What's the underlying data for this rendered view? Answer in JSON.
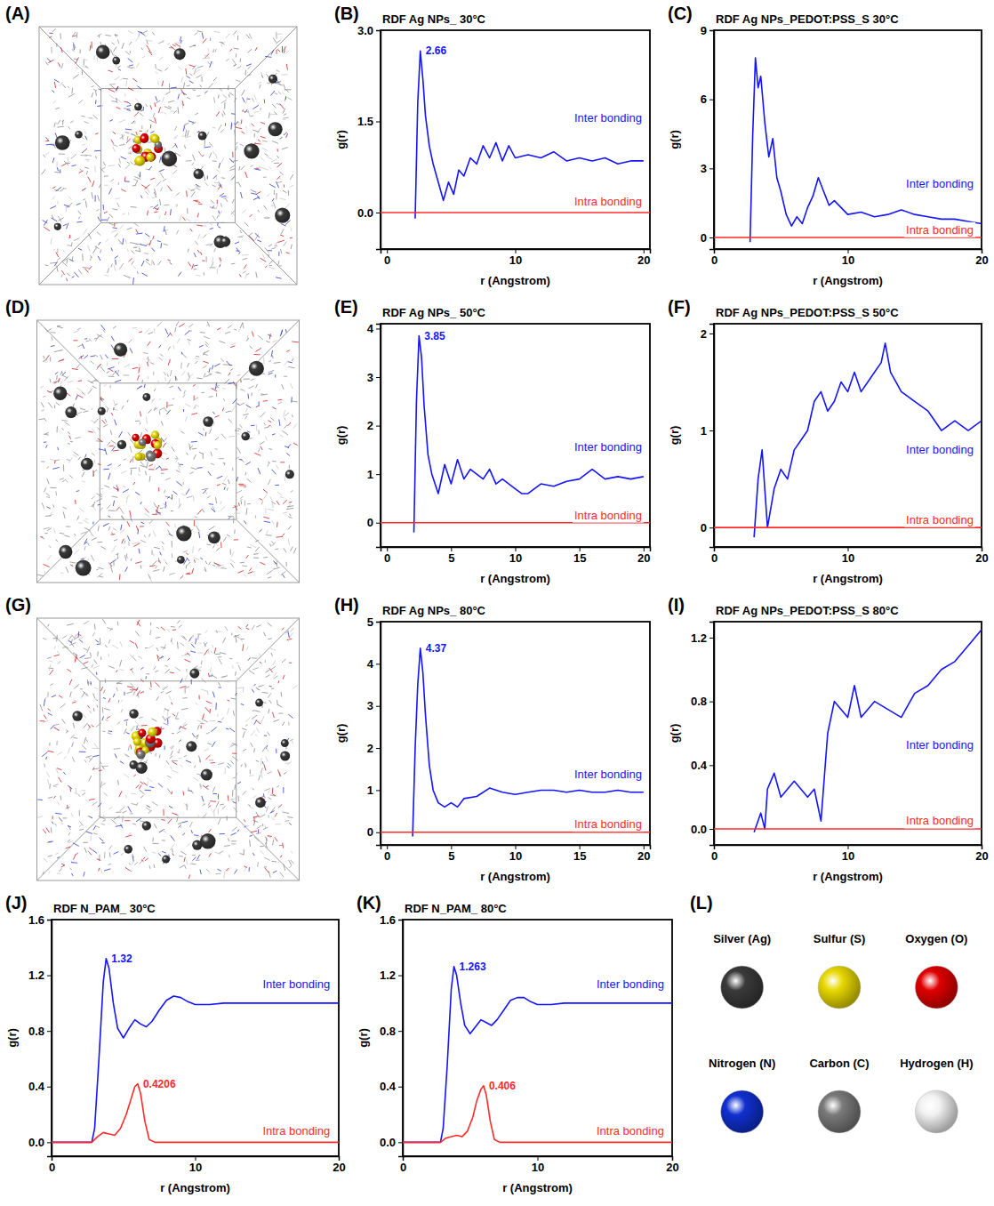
{
  "snapshots": [
    {
      "label": "(A)"
    },
    {
      "label": "(D)"
    },
    {
      "label": "(G)"
    }
  ],
  "atom_key": {
    "label": "(L)",
    "items": [
      {
        "name": "Silver (Ag)",
        "color": "#3a3a3a"
      },
      {
        "name": "Sulfur (S)",
        "color": "#e8d800"
      },
      {
        "name": "Oxygen (O)",
        "color": "#e00000"
      },
      {
        "name": "Nitrogen (N)",
        "color": "#1030d0"
      },
      {
        "name": "Carbon (C)",
        "color": "#7a7a7a"
      },
      {
        "name": "Hydrogen (H)",
        "color": "#f2f2f2"
      }
    ]
  },
  "chart_data": [
    {
      "label": "(B)",
      "type": "line",
      "title": "RDF Ag NPs_ 30°C",
      "x_label": "r (Angstrom)",
      "y_label": "g(r)",
      "xlim": [
        -0.5,
        20.5
      ],
      "xticks": [
        0,
        10,
        20
      ],
      "ylim": [
        -0.6,
        3.0
      ],
      "yticks": [
        {
          "value": 0,
          "label": "0.0"
        },
        {
          "value": 1.5,
          "label": "1.5"
        },
        {
          "value": 3.0,
          "label": "3.0"
        }
      ],
      "annotations": [
        {
          "text": "2.66",
          "x": 2.6,
          "y": 2.66
        }
      ],
      "series": [
        {
          "name": "Inter bonding",
          "color": "#1414ff",
          "x": [
            2.2,
            2.4,
            2.6,
            2.8,
            3.0,
            3.3,
            3.6,
            4.0,
            4.4,
            4.8,
            5.2,
            5.6,
            6.0,
            6.5,
            7,
            7.5,
            8,
            8.5,
            9,
            9.5,
            10,
            11,
            12,
            13,
            14,
            15,
            16,
            17,
            18,
            19,
            20
          ],
          "values": [
            -0.1,
            1.8,
            2.66,
            2.2,
            1.6,
            1.1,
            0.8,
            0.5,
            0.2,
            0.5,
            0.3,
            0.7,
            0.6,
            0.9,
            0.8,
            1.1,
            0.9,
            1.15,
            0.85,
            1.1,
            0.9,
            0.95,
            0.9,
            1.0,
            0.85,
            0.9,
            0.85,
            0.9,
            0.8,
            0.85,
            0.85
          ]
        },
        {
          "name": "Intra bonding",
          "color": "#ff2a2a",
          "x": [
            -0.5,
            20.5
          ],
          "values": [
            0,
            0
          ]
        }
      ]
    },
    {
      "label": "(C)",
      "type": "line",
      "title": "RDF Ag NPs_PEDOT:PSS_S 30°C",
      "x_label": "r (Angstrom)",
      "y_label": "g(r)",
      "xlim": [
        0,
        20
      ],
      "xticks": [
        0,
        10,
        20
      ],
      "ylim": [
        -0.5,
        9
      ],
      "yticks": [
        0,
        3,
        6,
        9
      ],
      "series": [
        {
          "name": "Inter bonding",
          "color": "#1414ff",
          "x": [
            2.7,
            2.9,
            3.1,
            3.3,
            3.5,
            3.8,
            4.1,
            4.4,
            4.7,
            5.0,
            5.4,
            5.8,
            6.2,
            6.6,
            7.0,
            7.4,
            7.8,
            8.2,
            8.6,
            9.0,
            9.5,
            10,
            11,
            12,
            13,
            14,
            15,
            16,
            17,
            18,
            19,
            20
          ],
          "values": [
            -0.2,
            4.5,
            7.8,
            6.5,
            7.0,
            5.0,
            3.5,
            4.3,
            2.6,
            2.0,
            1.0,
            0.5,
            0.9,
            0.6,
            1.3,
            1.8,
            2.6,
            2.0,
            1.4,
            1.6,
            1.3,
            1.0,
            1.1,
            0.9,
            1.0,
            1.2,
            1.0,
            0.9,
            0.8,
            0.8,
            0.7,
            0.6
          ]
        },
        {
          "name": "Intra bonding",
          "color": "#ff2a2a",
          "x": [
            0,
            20
          ],
          "values": [
            0,
            0
          ]
        }
      ]
    },
    {
      "label": "(E)",
      "type": "line",
      "title": "RDF Ag NPs_ 50°C",
      "x_label": "r (Angstrom)",
      "y_label": "g(r)",
      "xlim": [
        -0.5,
        20.5
      ],
      "xticks": [
        0,
        5,
        10,
        15,
        20
      ],
      "ylim": [
        -0.5,
        4.1
      ],
      "yticks": [
        0,
        1,
        2,
        3,
        4
      ],
      "annotations": [
        {
          "text": "3.85",
          "x": 2.5,
          "y": 3.85
        }
      ],
      "series": [
        {
          "name": "Inter bonding",
          "color": "#1414ff",
          "x": [
            2.1,
            2.3,
            2.5,
            2.7,
            2.9,
            3.2,
            3.5,
            4,
            4.5,
            5,
            5.5,
            6,
            6.5,
            7,
            7.5,
            8,
            8.5,
            9,
            9.5,
            10,
            10.5,
            11,
            12,
            13,
            14,
            15,
            16,
            17,
            18,
            19,
            20
          ],
          "values": [
            -0.2,
            2.5,
            3.85,
            3.4,
            2.4,
            1.4,
            1.0,
            0.6,
            1.2,
            0.8,
            1.3,
            0.9,
            1.1,
            1.0,
            0.9,
            1.1,
            0.8,
            0.9,
            0.8,
            0.7,
            0.6,
            0.6,
            0.8,
            0.75,
            0.85,
            0.9,
            1.1,
            0.9,
            0.95,
            0.9,
            0.95
          ]
        },
        {
          "name": "Intra bonding",
          "color": "#ff2a2a",
          "x": [
            -0.5,
            20.5
          ],
          "values": [
            0,
            0
          ]
        }
      ]
    },
    {
      "label": "(F)",
      "type": "line",
      "title": "RDF Ag NPs_PEDOT:PSS_S 50°C",
      "x_label": "r (Angstrom)",
      "y_label": "g(r)",
      "xlim": [
        0,
        20
      ],
      "xticks": [
        0,
        10,
        20
      ],
      "ylim": [
        -0.2,
        2.1
      ],
      "yticks": [
        0,
        1,
        2
      ],
      "series": [
        {
          "name": "Inter bonding",
          "color": "#1414ff",
          "x": [
            3.0,
            3.3,
            3.6,
            4.0,
            4.5,
            5,
            5.5,
            6,
            6.5,
            7,
            7.5,
            8,
            8.5,
            9,
            9.5,
            10,
            10.5,
            11,
            11.5,
            12,
            12.5,
            12.8,
            13.2,
            13.6,
            14,
            15,
            16,
            17,
            18,
            19,
            20
          ],
          "values": [
            -0.1,
            0.5,
            0.8,
            0.0,
            0.4,
            0.6,
            0.5,
            0.8,
            0.9,
            1.0,
            1.3,
            1.4,
            1.2,
            1.3,
            1.5,
            1.4,
            1.6,
            1.4,
            1.5,
            1.6,
            1.7,
            1.9,
            1.6,
            1.5,
            1.4,
            1.3,
            1.2,
            1.0,
            1.1,
            1.0,
            1.1
          ]
        },
        {
          "name": "Intra bonding",
          "color": "#ff2a2a",
          "x": [
            0,
            20
          ],
          "values": [
            0,
            0
          ]
        }
      ]
    },
    {
      "label": "(H)",
      "type": "line",
      "title": "RDF Ag NPs_ 80°C",
      "x_label": "r (Angstrom)",
      "y_label": "g(r)",
      "xlim": [
        -0.5,
        20.5
      ],
      "xticks": [
        0,
        5,
        10,
        15,
        20
      ],
      "ylim": [
        -0.3,
        5
      ],
      "yticks": [
        0,
        1,
        2,
        3,
        4,
        5
      ],
      "annotations": [
        {
          "text": "4.37",
          "x": 2.6,
          "y": 4.37
        }
      ],
      "series": [
        {
          "name": "Inter bonding",
          "color": "#1414ff",
          "x": [
            2.0,
            2.2,
            2.4,
            2.6,
            2.8,
            3.0,
            3.3,
            3.6,
            4,
            4.5,
            5,
            5.5,
            6,
            7,
            8,
            9,
            10,
            11,
            12,
            13,
            14,
            15,
            16,
            17,
            18,
            19,
            20
          ],
          "values": [
            -0.1,
            2.0,
            3.5,
            4.37,
            3.8,
            2.8,
            1.6,
            1.0,
            0.7,
            0.6,
            0.7,
            0.6,
            0.8,
            0.85,
            1.05,
            0.95,
            0.9,
            0.95,
            1.0,
            1.0,
            0.95,
            1.0,
            0.95,
            0.95,
            1.0,
            0.95,
            0.95
          ]
        },
        {
          "name": "Intra bonding",
          "color": "#ff2a2a",
          "x": [
            -0.5,
            20.5
          ],
          "values": [
            0,
            0
          ]
        }
      ]
    },
    {
      "label": "(I)",
      "type": "line",
      "title": "RDF Ag NPs_PEDOT:PSS_S 80°C",
      "x_label": "r (Angstrom)",
      "y_label": "g(r)",
      "xlim": [
        0,
        20
      ],
      "xticks": [
        0,
        10,
        20
      ],
      "ylim": [
        -0.1,
        1.3
      ],
      "yticks": [
        {
          "value": 0,
          "label": "0.0"
        },
        {
          "value": 0.4,
          "label": "0.4"
        },
        {
          "value": 0.8,
          "label": "0.8"
        },
        {
          "value": 1.2,
          "label": "1.2"
        }
      ],
      "series": [
        {
          "name": "Inter bonding",
          "color": "#1414ff",
          "x": [
            3.0,
            3.5,
            3.8,
            4.0,
            4.5,
            5,
            6,
            7,
            7.5,
            8,
            8.5,
            9,
            10,
            10.5,
            11,
            12,
            13,
            14,
            15,
            16,
            17,
            18,
            19,
            20
          ],
          "values": [
            -0.02,
            0.1,
            0.0,
            0.25,
            0.35,
            0.2,
            0.3,
            0.2,
            0.25,
            0.05,
            0.6,
            0.8,
            0.7,
            0.9,
            0.7,
            0.8,
            0.75,
            0.7,
            0.85,
            0.9,
            1.0,
            1.05,
            1.15,
            1.25
          ]
        },
        {
          "name": "Intra bonding",
          "color": "#ff2a2a",
          "x": [
            0,
            20
          ],
          "values": [
            0,
            0
          ]
        }
      ]
    },
    {
      "label": "(J)",
      "type": "line",
      "title": "RDF N_PAM_ 30°C",
      "x_label": "r (Angstrom)",
      "y_label": "g(r)",
      "xlim": [
        0,
        20
      ],
      "xticks": [
        0,
        10,
        20
      ],
      "ylim": [
        -0.1,
        1.6
      ],
      "yticks": [
        {
          "value": 0,
          "label": "0.0"
        },
        {
          "value": 0.4,
          "label": "0.4"
        },
        {
          "value": 0.8,
          "label": "0.8"
        },
        {
          "value": 1.2,
          "label": "1.2"
        },
        {
          "value": 1.6,
          "label": "1.6"
        }
      ],
      "annotations": [
        {
          "text": "1.32",
          "x": 3.8,
          "y": 1.32
        },
        {
          "text": "0.4206",
          "x": 6.0,
          "y": 0.4206
        }
      ],
      "series": [
        {
          "name": "Inter bonding",
          "color": "#1414ff",
          "x": [
            0,
            2.8,
            3.0,
            3.3,
            3.6,
            3.8,
            4.0,
            4.3,
            4.6,
            5.0,
            5.4,
            5.8,
            6.2,
            6.6,
            7.0,
            7.5,
            8.0,
            8.5,
            9.0,
            9.5,
            10,
            11,
            12,
            14,
            16,
            18,
            20
          ],
          "values": [
            0,
            0,
            0.1,
            0.6,
            1.15,
            1.32,
            1.25,
            1.0,
            0.82,
            0.75,
            0.82,
            0.88,
            0.85,
            0.83,
            0.87,
            0.95,
            1.02,
            1.05,
            1.04,
            1.01,
            0.99,
            0.99,
            1.0,
            1.0,
            1.0,
            1.0,
            1.0
          ]
        },
        {
          "name": "Intra bonding",
          "color": "#ff2a2a",
          "x": [
            0,
            2.8,
            3.2,
            3.6,
            4.0,
            4.4,
            4.8,
            5.2,
            5.5,
            5.8,
            6.0,
            6.2,
            6.5,
            6.8,
            7.2,
            20
          ],
          "values": [
            0,
            0,
            0.04,
            0.07,
            0.06,
            0.05,
            0.1,
            0.2,
            0.3,
            0.4,
            0.4206,
            0.35,
            0.15,
            0.02,
            0,
            0
          ]
        }
      ]
    },
    {
      "label": "(K)",
      "type": "line",
      "title": "RDF N_PAM_ 80°C",
      "x_label": "r (Angstrom)",
      "y_label": "g(r)",
      "xlim": [
        0,
        20
      ],
      "xticks": [
        0,
        10,
        20
      ],
      "ylim": [
        -0.1,
        1.6
      ],
      "yticks": [
        {
          "value": 0,
          "label": "0.0"
        },
        {
          "value": 0.4,
          "label": "0.4"
        },
        {
          "value": 0.8,
          "label": "0.8"
        },
        {
          "value": 1.2,
          "label": "1.2"
        },
        {
          "value": 1.6,
          "label": "1.6"
        }
      ],
      "annotations": [
        {
          "text": "1.263",
          "x": 3.8,
          "y": 1.263
        },
        {
          "text": "0.406",
          "x": 6.0,
          "y": 0.406
        }
      ],
      "series": [
        {
          "name": "Inter bonding",
          "color": "#1414ff",
          "x": [
            0,
            2.8,
            3.0,
            3.3,
            3.6,
            3.8,
            4.0,
            4.3,
            4.6,
            5.0,
            5.4,
            5.8,
            6.2,
            6.6,
            7.0,
            7.5,
            8.0,
            8.5,
            9.0,
            9.5,
            10,
            11,
            12,
            14,
            16,
            18,
            20
          ],
          "values": [
            0,
            0,
            0.1,
            0.55,
            1.1,
            1.263,
            1.2,
            1.0,
            0.84,
            0.78,
            0.83,
            0.88,
            0.86,
            0.84,
            0.88,
            0.95,
            1.02,
            1.04,
            1.04,
            1.01,
            0.99,
            0.99,
            1.0,
            1.0,
            1.0,
            1.0,
            1.0
          ]
        },
        {
          "name": "Intra bonding",
          "color": "#ff2a2a",
          "x": [
            0,
            2.8,
            3.2,
            3.6,
            4.0,
            4.4,
            4.8,
            5.2,
            5.5,
            5.8,
            6.0,
            6.2,
            6.5,
            6.8,
            7.2,
            20
          ],
          "values": [
            0,
            0,
            0.03,
            0.04,
            0.05,
            0.04,
            0.08,
            0.18,
            0.3,
            0.38,
            0.406,
            0.34,
            0.15,
            0.02,
            0,
            0
          ]
        }
      ]
    }
  ]
}
